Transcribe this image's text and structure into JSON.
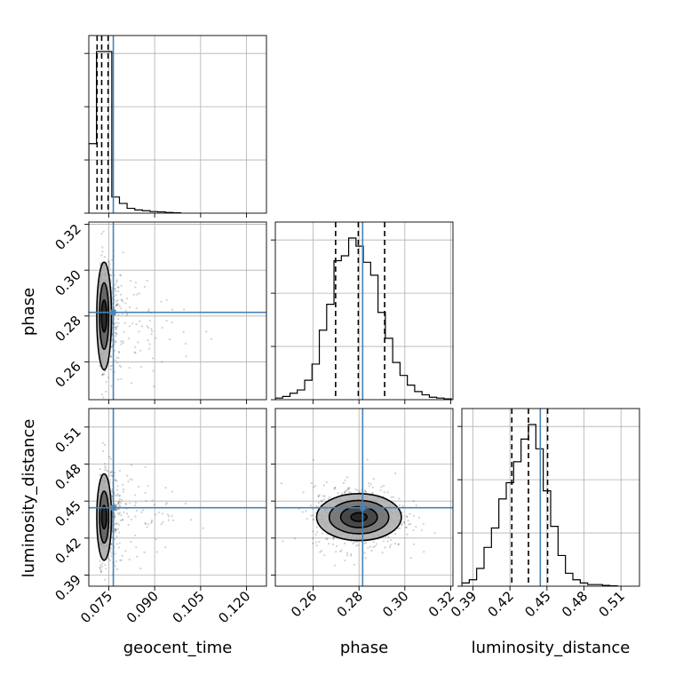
{
  "chart_data": {
    "type": "corner",
    "parameters": [
      "geocent_time",
      "phase",
      "luminosity_distance"
    ],
    "truths": {
      "geocent_time": 0.0765,
      "phase": 0.2816,
      "luminosity_distance": 0.4446
    },
    "truth_color": "#4682b4",
    "ranges": {
      "geocent_time": [
        0.0685,
        0.1265
      ],
      "phase": [
        0.2435,
        0.321
      ],
      "luminosity_distance": [
        0.381,
        0.525
      ]
    },
    "ticks": {
      "geocent_time": [
        "0.075",
        "0.090",
        "0.105",
        "0.120"
      ],
      "phase": [
        "0.26",
        "0.28",
        "0.30",
        "0.32"
      ],
      "luminosity_distance": [
        "0.39",
        "0.42",
        "0.45",
        "0.48",
        "0.51"
      ]
    },
    "quantiles": {
      "geocent_time": [
        0.0712,
        0.0727,
        0.0748
      ],
      "phase": [
        0.2698,
        0.2797,
        0.2912
      ],
      "luminosity_distance": [
        0.4215,
        0.435,
        0.4505
      ]
    },
    "histograms": {
      "geocent_time": {
        "edges": [
          0.0685,
          0.071,
          0.0735,
          0.076,
          0.0785,
          0.081,
          0.0835,
          0.086,
          0.0885,
          0.091,
          0.0935,
          0.096,
          0.0985
        ],
        "counts": [
          0.43,
          1.0,
          1.0,
          0.1,
          0.06,
          0.03,
          0.02,
          0.015,
          0.01,
          0.008,
          0.004,
          0.002
        ]
      },
      "phase": {
        "edges": [
          0.2435,
          0.2467,
          0.2499,
          0.2531,
          0.2563,
          0.2595,
          0.2627,
          0.2659,
          0.2691,
          0.2723,
          0.2755,
          0.2787,
          0.2819,
          0.2851,
          0.2883,
          0.2915,
          0.2947,
          0.2979,
          0.3011,
          0.3043,
          0.3075,
          0.3107,
          0.3139,
          0.3171,
          0.3203
        ],
        "counts": [
          0.01,
          0.02,
          0.04,
          0.06,
          0.12,
          0.22,
          0.43,
          0.59,
          0.86,
          0.89,
          1.0,
          0.95,
          0.85,
          0.77,
          0.54,
          0.38,
          0.23,
          0.15,
          0.09,
          0.05,
          0.03,
          0.015,
          0.01,
          0.005
        ]
      },
      "luminosity_distance": {
        "edges": [
          0.381,
          0.387,
          0.393,
          0.399,
          0.405,
          0.411,
          0.417,
          0.423,
          0.429,
          0.435,
          0.441,
          0.447,
          0.453,
          0.459,
          0.465,
          0.471,
          0.477,
          0.483,
          0.489,
          0.495,
          0.501,
          0.507
        ],
        "counts": [
          0.02,
          0.04,
          0.11,
          0.24,
          0.36,
          0.54,
          0.64,
          0.77,
          0.91,
          1.0,
          0.85,
          0.59,
          0.37,
          0.19,
          0.08,
          0.04,
          0.02,
          0.01,
          0.01,
          0.005,
          0.002
        ]
      }
    },
    "pairs": [
      {
        "x": "geocent_time",
        "y": "phase",
        "center": [
          0.0735,
          0.28
        ],
        "contours": [
          {
            "rx": 0.00085,
            "ry": 0.007,
            "fill": "#202020"
          },
          {
            "rx": 0.0015,
            "ry": 0.0145,
            "fill": "#5a5a5a"
          },
          {
            "rx": 0.0024,
            "ry": 0.0235,
            "fill": "#a8a8a8"
          }
        ],
        "scatter": {
          "n": 650,
          "sx": 0.006,
          "sy": 0.012,
          "tail": true
        }
      },
      {
        "x": "geocent_time",
        "y": "luminosity_distance",
        "center": [
          0.0735,
          0.437
        ],
        "contours": [
          {
            "rx": 0.0008,
            "ry": 0.0095,
            "fill": "#202020"
          },
          {
            "rx": 0.0015,
            "ry": 0.021,
            "fill": "#5a5a5a"
          },
          {
            "rx": 0.0024,
            "ry": 0.035,
            "fill": "#a8a8a8"
          }
        ],
        "scatter": {
          "n": 650,
          "sx": 0.006,
          "sy": 0.018,
          "tail": true
        }
      },
      {
        "x": "phase",
        "y": "luminosity_distance",
        "center": [
          0.28,
          0.437
        ],
        "contours": [
          {
            "rx": 0.0035,
            "ry": 0.0035,
            "fill": "#202020"
          },
          {
            "rx": 0.008,
            "ry": 0.0085,
            "fill": "#404040"
          },
          {
            "rx": 0.013,
            "ry": 0.0135,
            "fill": "#6e6e6e"
          },
          {
            "rx": 0.0185,
            "ry": 0.019,
            "fill": "#ababab"
          }
        ],
        "scatter": {
          "n": 750,
          "sx": 0.01,
          "sy": 0.013,
          "tail": false
        }
      }
    ]
  }
}
